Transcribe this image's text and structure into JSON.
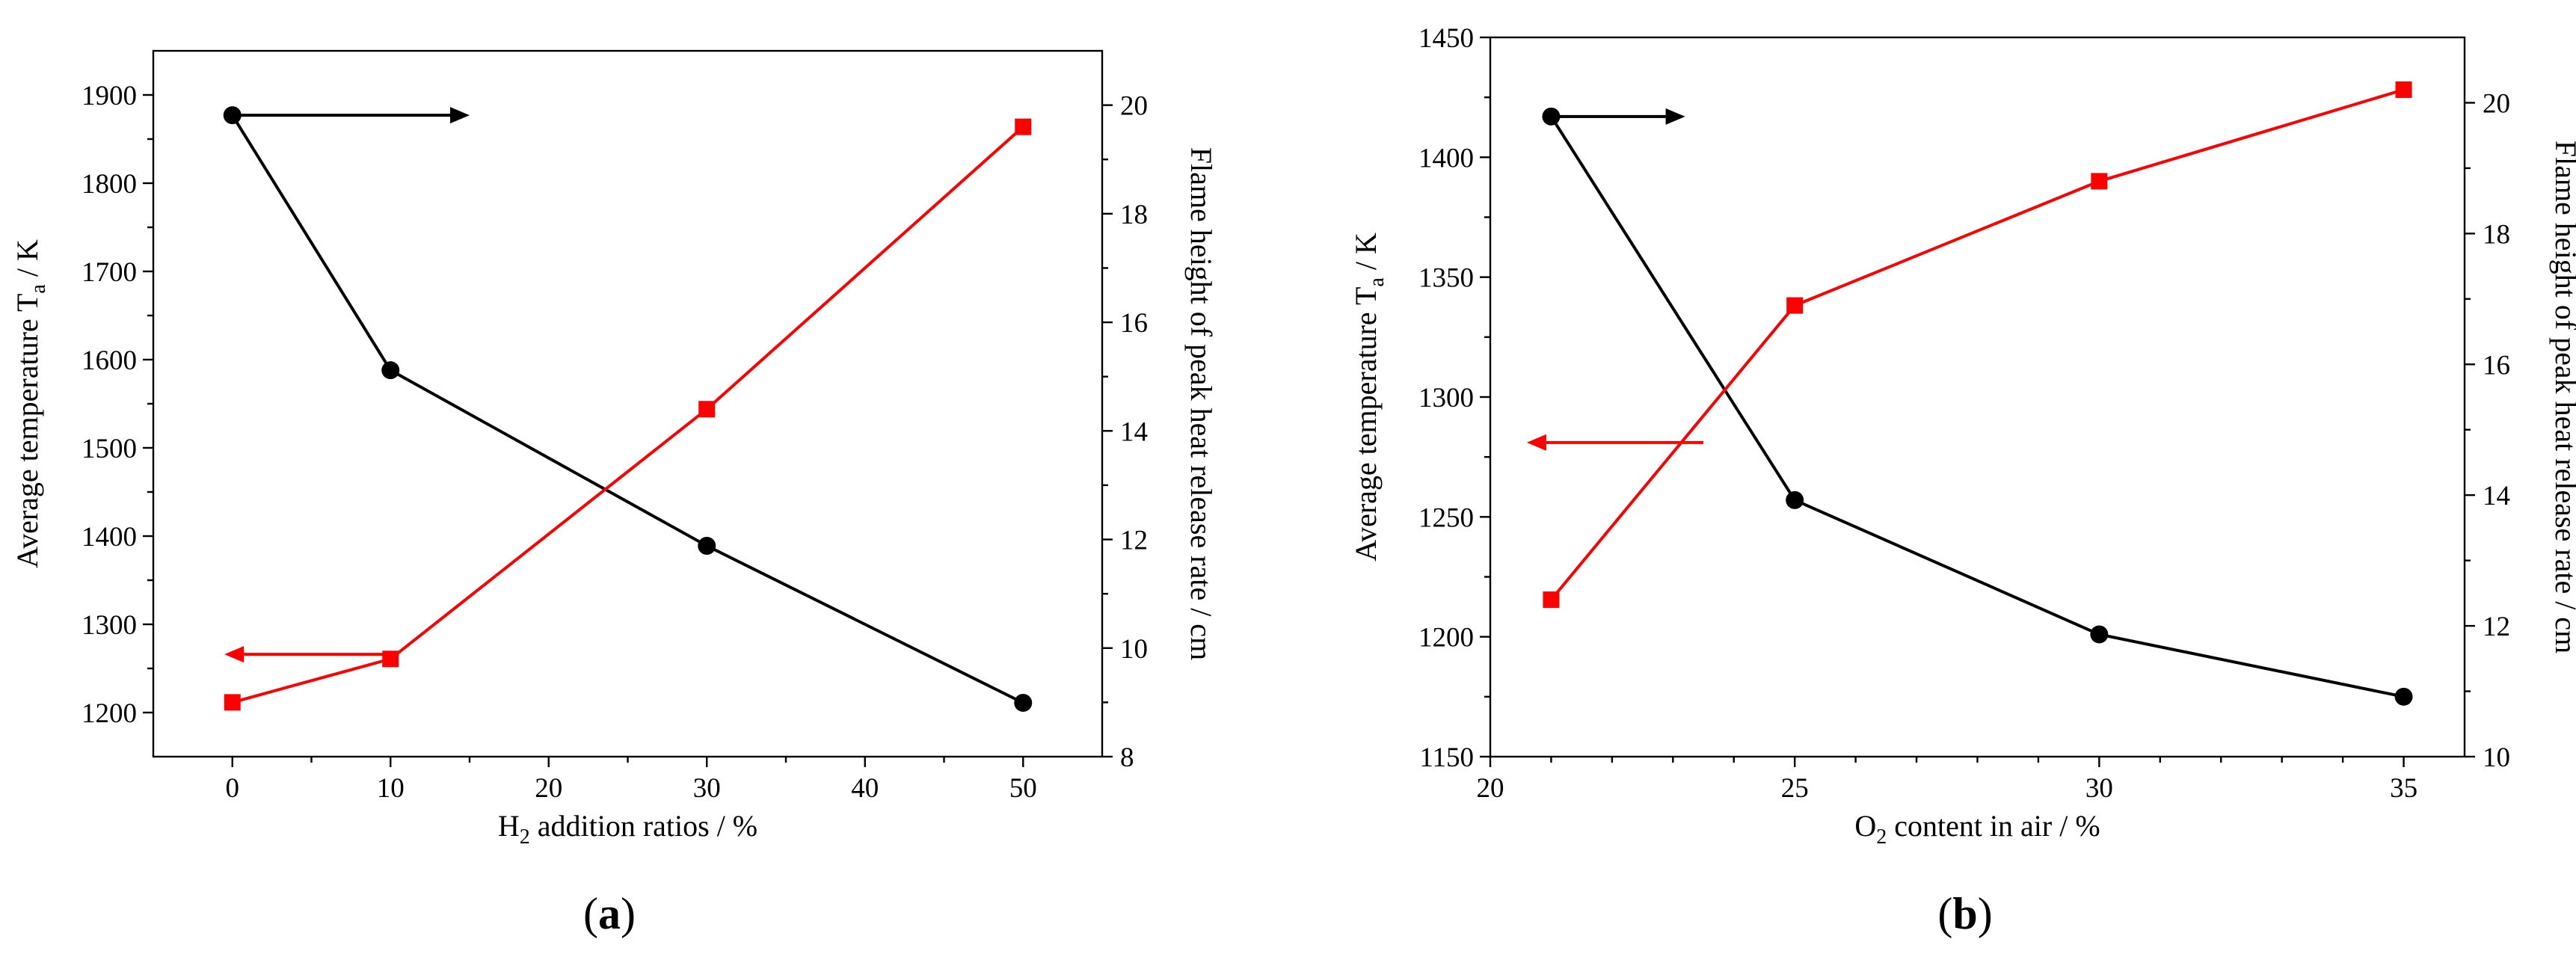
{
  "chart_data": [
    {
      "type": "line",
      "panel_label": {
        "open": "(",
        "letter": "a",
        "close": ")"
      },
      "xlabel": {
        "main": "H",
        "sub": "2",
        "rest": " addition ratios / %"
      },
      "ylabel_left": {
        "main": "Average temperature T",
        "sub": "a",
        "rest": " / K"
      },
      "ylabel_right": "Flame height of peak heat release rate / cm",
      "x_categories": [
        "0",
        "10",
        "20",
        "30",
        "40",
        "50"
      ],
      "x_ticks": [
        0,
        10,
        20,
        30,
        40,
        50
      ],
      "xlim": [
        -5,
        55
      ],
      "ylim_left": [
        1150,
        1950
      ],
      "yticks_left": [
        1200,
        1300,
        1400,
        1500,
        1600,
        1700,
        1800,
        1900
      ],
      "ylim_right": [
        8,
        21
      ],
      "yticks_right": [
        8,
        10,
        12,
        14,
        16,
        18,
        20
      ],
      "series": [
        {
          "axis": "left",
          "color": "#000000",
          "marker": "circle",
          "x": [
            0,
            10,
            30,
            50
          ],
          "values": [
            1877,
            1588,
            1389,
            1211
          ]
        },
        {
          "axis": "right",
          "color": "#ff0000",
          "marker": "square",
          "x": [
            0,
            10,
            30,
            50
          ],
          "values": [
            9.0,
            9.8,
            14.4,
            19.6
          ]
        }
      ],
      "arrows": [
        {
          "color": "#000000",
          "direction": "right",
          "from_x": 0,
          "to_x": 15,
          "y_left": 1877
        },
        {
          "color": "#ff0000",
          "direction": "left",
          "from_x": 10,
          "to_x": -0.5,
          "y_left": 1266
        }
      ]
    },
    {
      "type": "line",
      "panel_label": {
        "open": "(",
        "letter": "b",
        "close": ")"
      },
      "xlabel": {
        "main": "O",
        "sub": "2",
        "rest": " content in air / %"
      },
      "ylabel_left": {
        "main": "Average temperature T",
        "sub": "a",
        "rest": " / K"
      },
      "ylabel_right": "Flame height of peak heat release rate / cm",
      "x_ticks": [
        20,
        25,
        30,
        35
      ],
      "xlim": [
        20,
        36
      ],
      "ylim_left": [
        1150,
        1450
      ],
      "yticks_left": [
        1150,
        1200,
        1250,
        1300,
        1350,
        1400,
        1450
      ],
      "ylim_right": [
        10,
        21
      ],
      "yticks_right": [
        10,
        12,
        14,
        16,
        18,
        20
      ],
      "series": [
        {
          "axis": "left",
          "color": "#000000",
          "marker": "circle",
          "x": [
            21,
            25,
            30,
            35
          ],
          "values": [
            1417,
            1257,
            1201,
            1175
          ]
        },
        {
          "axis": "right",
          "color": "#ff0000",
          "marker": "square",
          "x": [
            21,
            25,
            30,
            35
          ],
          "values": [
            12.4,
            16.9,
            18.8,
            20.2
          ]
        }
      ],
      "arrows": [
        {
          "color": "#000000",
          "direction": "right",
          "from_x": 21,
          "to_x": 23.2,
          "y_left": 1417
        },
        {
          "color": "#ff0000",
          "direction": "left",
          "from_x": 23.5,
          "to_x": 20.6,
          "y_left": 1281
        }
      ]
    }
  ]
}
